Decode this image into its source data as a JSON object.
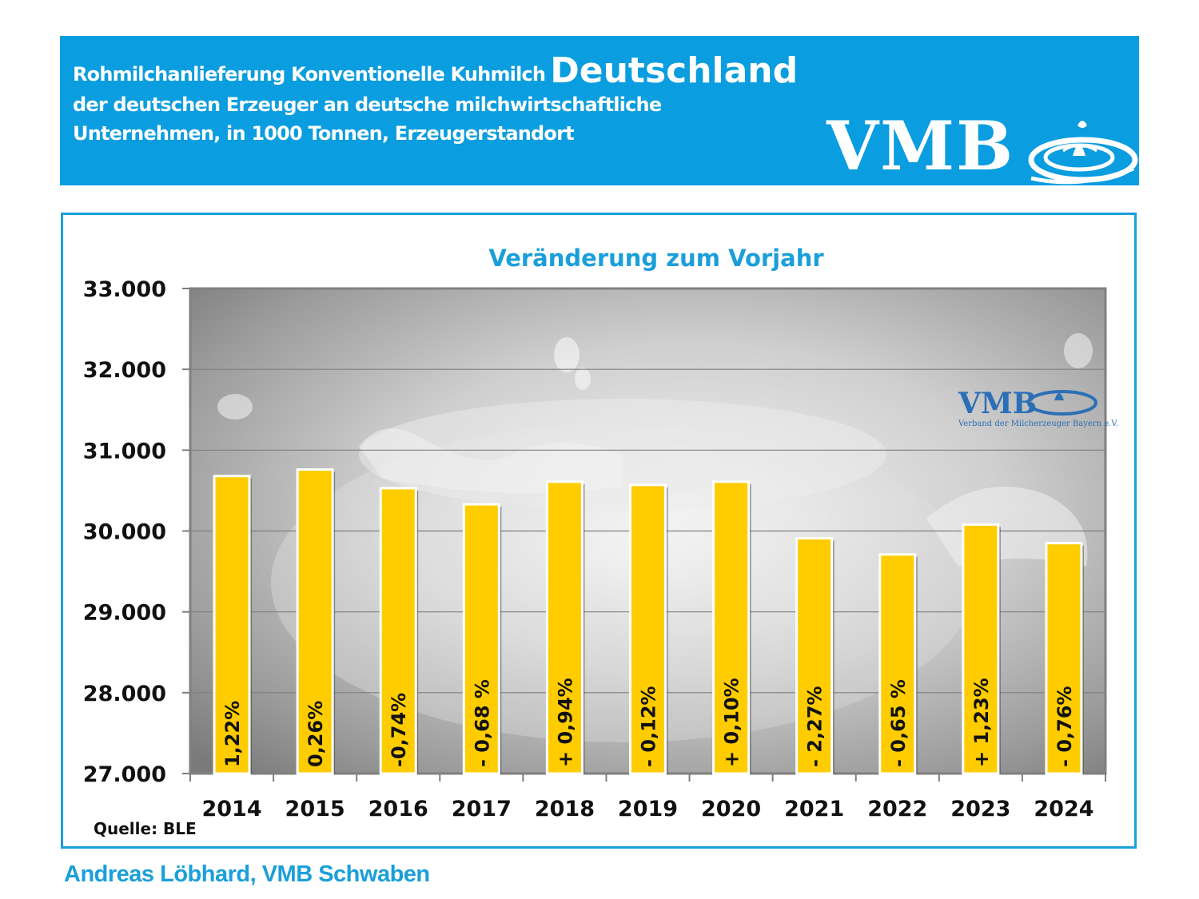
{
  "header": {
    "line1": "Rohmilchanlieferung Konventionelle Kuhmilch",
    "line1_emphasis": "Deutschland",
    "line2": "der deutschen Erzeuger an deutsche milchwirtschaftliche",
    "line3": "Unternehmen, in 1000 Tonnen, Erzeugerstandort",
    "logo_text": "VMB"
  },
  "watermark": {
    "logo_text": "VMB",
    "tagline": "Verband der Milcherzeuger Bayern e.V."
  },
  "chart_data": {
    "type": "bar",
    "title": "Veränderung zum Vorjahr",
    "categories": [
      "2014",
      "2015",
      "2016",
      "2017",
      "2018",
      "2019",
      "2020",
      "2021",
      "2022",
      "2023",
      "2024"
    ],
    "values": [
      30680,
      30760,
      30530,
      30330,
      30610,
      30570,
      30610,
      29910,
      29710,
      30080,
      29850
    ],
    "bar_labels": [
      "1,22%",
      "0,26%",
      "-0,74%",
      "- 0,68 %",
      "+ 0,94%",
      "- 0,12%",
      "+ 0,10%",
      "- 2,27%",
      "- 0,65 %",
      "+ 1,23%",
      "- 0,76%"
    ],
    "ylim": [
      27000,
      33000
    ],
    "yticks": [
      27000,
      28000,
      29000,
      30000,
      31000,
      32000,
      33000
    ],
    "ytick_labels": [
      "27.000",
      "28.000",
      "29.000",
      "30.000",
      "31.000",
      "32.000",
      "33.000"
    ],
    "xlabel": "",
    "ylabel": "",
    "grid": true,
    "bar_color": "#ffcc00",
    "source": "Quelle: BLE"
  },
  "footer": {
    "author": "Andreas Löbhard, VMB Schwaben"
  },
  "colors": {
    "header_bg": "#0a9ddf",
    "accent": "#1a9fd9",
    "bar": "#ffcc00"
  }
}
